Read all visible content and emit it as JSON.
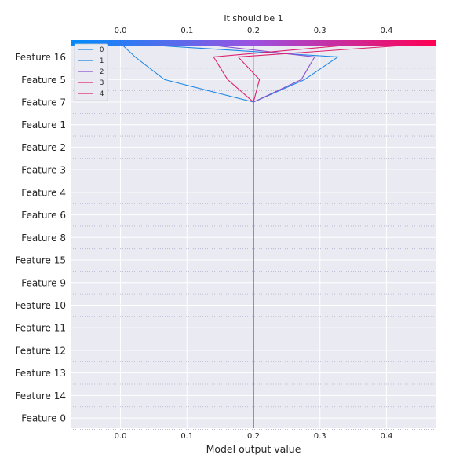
{
  "chart_data": {
    "type": "line",
    "title": "It should be 1",
    "xlabel": "Model output value",
    "ylabel": "",
    "xlim": [
      -0.075,
      0.475
    ],
    "x_ticks": [
      0.0,
      0.1,
      0.2,
      0.3,
      0.4
    ],
    "x_tick_labels": [
      "0.0",
      "0.1",
      "0.2",
      "0.3",
      "0.4"
    ],
    "top_colorbar": {
      "from": "#008bfb",
      "mid": "#9b52e0",
      "to": "#ff0052"
    },
    "base_value": 0.2,
    "categories": [
      "Feature 16",
      "Feature 5",
      "Feature 7",
      "Feature 1",
      "Feature 2",
      "Feature 3",
      "Feature 4",
      "Feature 6",
      "Feature 8",
      "Feature 15",
      "Feature 9",
      "Feature 10",
      "Feature 11",
      "Feature 12",
      "Feature 13",
      "Feature 14",
      "Feature 0"
    ],
    "grid": true,
    "legend_placement": "top-left",
    "series": [
      {
        "name": "0",
        "color": "#1e88e5",
        "values": [
          0.022,
          0.066,
          0.2,
          0.2,
          0.2,
          0.2,
          0.2,
          0.2,
          0.2,
          0.2,
          0.2,
          0.2,
          0.2,
          0.2,
          0.2,
          0.2,
          0.2
        ],
        "top": 0.0
      },
      {
        "name": "1",
        "color": "#1e88e5",
        "values": [
          0.327,
          0.277,
          0.2,
          0.2,
          0.2,
          0.2,
          0.2,
          0.2,
          0.2,
          0.2,
          0.2,
          0.2,
          0.2,
          0.2,
          0.2,
          0.2,
          0.2
        ],
        "top": 0.0
      },
      {
        "name": "2",
        "color": "#8a4fd1",
        "values": [
          0.292,
          0.272,
          0.2,
          0.2,
          0.2,
          0.2,
          0.2,
          0.2,
          0.2,
          0.2,
          0.2,
          0.2,
          0.2,
          0.2,
          0.2,
          0.2,
          0.2
        ],
        "top": 0.112
      },
      {
        "name": "3",
        "color": "#e0206f",
        "values": [
          0.14,
          0.161,
          0.2,
          0.2,
          0.2,
          0.2,
          0.2,
          0.2,
          0.2,
          0.2,
          0.2,
          0.2,
          0.2,
          0.2,
          0.2,
          0.2,
          0.2
        ],
        "top": 0.375
      },
      {
        "name": "4",
        "color": "#e0206f",
        "values": [
          0.177,
          0.209,
          0.2,
          0.2,
          0.2,
          0.2,
          0.2,
          0.2,
          0.2,
          0.2,
          0.2,
          0.2,
          0.2,
          0.2,
          0.2,
          0.2,
          0.2
        ],
        "top": 0.475
      }
    ]
  }
}
